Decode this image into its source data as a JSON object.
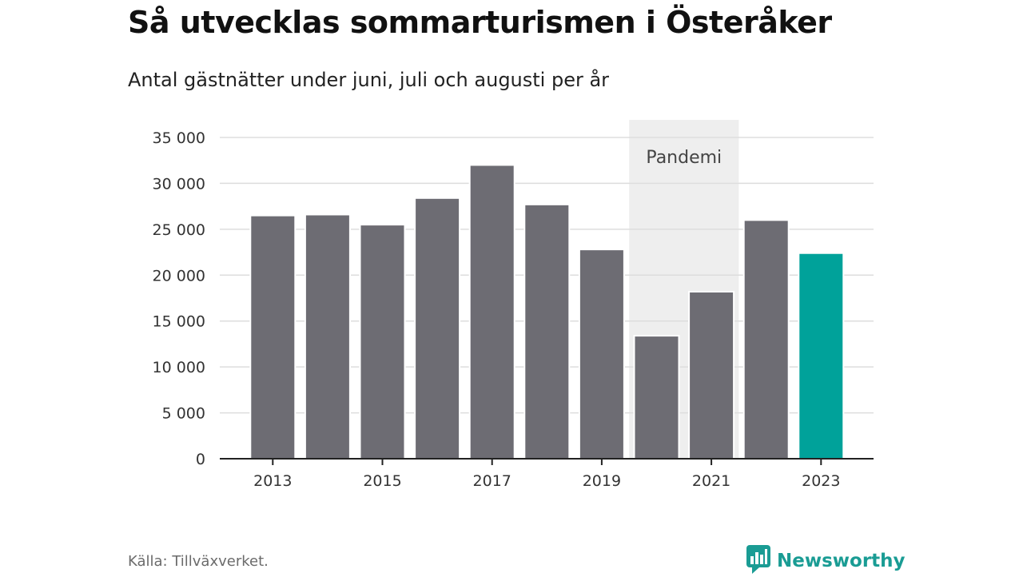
{
  "header": {
    "title": "Så utvecklas sommarturismen i Österåker",
    "subtitle": "Antal gästnätter under juni, juli och augusti per år"
  },
  "footer": {
    "source": "Källa: Tillväxverket.",
    "brand": "Newsworthy",
    "brand_icon": "newsworthy-logo-icon"
  },
  "chart_data": {
    "type": "bar",
    "categories": [
      "2013",
      "2014",
      "2015",
      "2016",
      "2017",
      "2018",
      "2019",
      "2020",
      "2021",
      "2022",
      "2023"
    ],
    "values": [
      26500,
      26600,
      25500,
      28400,
      32000,
      27700,
      22800,
      13400,
      18200,
      26000,
      22400
    ],
    "ylim": [
      0,
      35000
    ],
    "y_ticks": [
      0,
      5000,
      10000,
      15000,
      20000,
      25000,
      30000,
      35000
    ],
    "y_tick_labels": [
      "0",
      "5 000",
      "10 000",
      "15 000",
      "20 000",
      "25 000",
      "30 000",
      "35 000"
    ],
    "x_tick_labels": [
      "2013",
      "2015",
      "2017",
      "2019",
      "2021",
      "2023"
    ],
    "highlight": {
      "category": "2023",
      "color": "#00a29a"
    },
    "bar_color": "#6d6c73",
    "shaded_region": {
      "label": "Pandemi",
      "from": "2020",
      "to": "2021",
      "color": "#eeeeee"
    },
    "xlabel": "",
    "ylabel": "",
    "grid": true,
    "legend": "none"
  }
}
